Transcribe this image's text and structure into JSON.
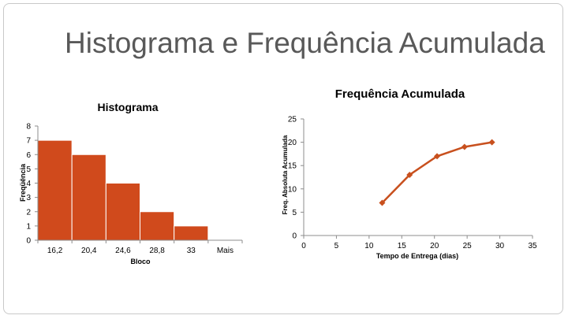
{
  "slide": {
    "title": "Histograma e Frequência Acumulada"
  },
  "chart_data": [
    {
      "type": "bar",
      "title": "Histograma",
      "xlabel": "Bloco",
      "ylabel": "Freqüência",
      "categories": [
        "16,2",
        "20,4",
        "24,6",
        "28,8",
        "33",
        "Mais"
      ],
      "values": [
        7,
        6,
        4,
        2,
        1,
        0
      ],
      "ylim": [
        0,
        8
      ],
      "yticks": [
        0,
        1,
        2,
        3,
        4,
        5,
        6,
        7,
        8
      ],
      "grid": false,
      "legend": "none",
      "color": "#d04a1c"
    },
    {
      "type": "line",
      "title": "Frequência Acumulada",
      "xlabel": "Tempo de Entrega (dias)",
      "ylabel": "Freq. Absoluta Acumulada",
      "x": [
        12,
        16.2,
        20.4,
        24.6,
        28.8
      ],
      "y": [
        7,
        13,
        17,
        19,
        20
      ],
      "xlim": [
        0,
        35
      ],
      "ylim": [
        0,
        25
      ],
      "xticks": [
        0,
        5,
        10,
        15,
        20,
        25,
        30,
        35
      ],
      "yticks": [
        0,
        5,
        10,
        15,
        20,
        25
      ],
      "grid": false,
      "legend": "none",
      "color": "#c8501e",
      "marker": "diamond"
    }
  ]
}
